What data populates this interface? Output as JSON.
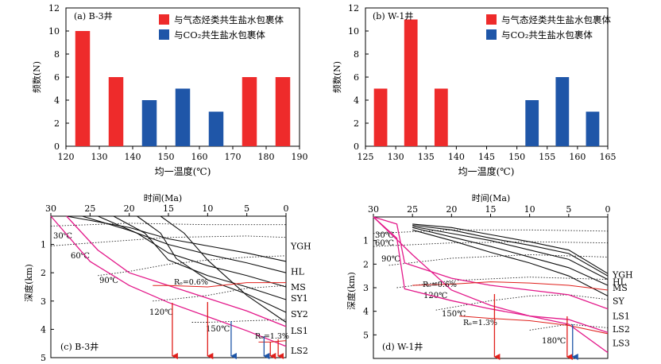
{
  "chart_data": [
    {
      "type": "bar",
      "panel_label": "(a) B-3井",
      "xlabel": "均一温度(℃)",
      "ylabel": "频数(N)",
      "xlim": [
        120,
        190
      ],
      "ylim": [
        0,
        12
      ],
      "x_ticks": [
        "120",
        "130",
        "140",
        "150",
        "160",
        "170",
        "180",
        "190"
      ],
      "y_ticks": [
        "0",
        "2",
        "4",
        "6",
        "8",
        "10",
        "12"
      ],
      "bin_width": 5,
      "series": [
        {
          "name": "与气态烃类共生盐水包裹体",
          "color": "#ee2b2b",
          "bars": [
            {
              "x": 125,
              "value": 10
            },
            {
              "x": 135,
              "value": 6
            },
            {
              "x": 175,
              "value": 6
            },
            {
              "x": 185,
              "value": 6
            }
          ]
        },
        {
          "name": "与CO₂共生盐水包裹体",
          "color": "#1f56a8",
          "bars": [
            {
              "x": 145,
              "value": 4
            },
            {
              "x": 155,
              "value": 5
            },
            {
              "x": 165,
              "value": 3
            }
          ]
        }
      ]
    },
    {
      "type": "bar",
      "panel_label": "(b) W-1井",
      "xlabel": "均一温度(℃)",
      "ylabel": "频数(N)",
      "xlim": [
        125,
        165
      ],
      "ylim": [
        0,
        12
      ],
      "x_ticks": [
        "125",
        "130",
        "135",
        "140",
        "145",
        "150",
        "155",
        "160",
        "165"
      ],
      "y_ticks": [
        "0",
        "2",
        "4",
        "6",
        "8",
        "10",
        "12"
      ],
      "bin_width": 2.5,
      "series": [
        {
          "name": "与气态烃类共生盐水包裹体",
          "color": "#ee2b2b",
          "bars": [
            {
              "x": 127.5,
              "value": 5
            },
            {
              "x": 132.5,
              "value": 11
            },
            {
              "x": 137.5,
              "value": 5
            }
          ]
        },
        {
          "name": "与CO₂共生盐水包裹体",
          "color": "#1f56a8",
          "bars": [
            {
              "x": 152.5,
              "value": 4
            },
            {
              "x": 157.5,
              "value": 6
            },
            {
              "x": 162.5,
              "value": 3
            }
          ]
        }
      ]
    },
    {
      "type": "line",
      "panel_label": "(c) B-3井",
      "xlabel": "时间(Ma)",
      "ylabel": "深度(km)",
      "xlim": [
        30,
        0
      ],
      "ylim": [
        0,
        5
      ],
      "x_ticks": [
        "30",
        "25",
        "20",
        "15",
        "10",
        "5",
        "0"
      ],
      "y_ticks": [
        "1",
        "2",
        "3",
        "4",
        "5"
      ],
      "strata": [
        "YGH",
        "HL",
        "MS",
        "SY1",
        "SY2",
        "LS1",
        "LS2"
      ],
      "strata_depths": [
        1.05,
        1.95,
        2.5,
        2.9,
        3.45,
        4.05,
        4.75
      ],
      "burial_curves": [
        {
          "x": [
            28,
            20,
            15,
            10,
            5,
            0
          ],
          "y": [
            0,
            0.4,
            0.8,
            1.05,
            1.3,
            1.6
          ]
        },
        {
          "x": [
            26,
            20,
            15,
            10,
            5,
            0
          ],
          "y": [
            0,
            0.5,
            1.0,
            1.35,
            1.65,
            2.0
          ]
        },
        {
          "x": [
            24,
            19,
            15,
            10,
            5,
            0
          ],
          "y": [
            0,
            0.6,
            1.3,
            1.75,
            2.1,
            2.5
          ]
        },
        {
          "x": [
            22,
            18,
            15,
            10,
            5,
            0
          ],
          "y": [
            0,
            0.6,
            1.55,
            2.1,
            2.5,
            2.95
          ]
        },
        {
          "x": [
            19,
            16,
            14,
            10,
            5,
            0
          ],
          "y": [
            0,
            0.6,
            1.5,
            2.25,
            2.75,
            3.4
          ]
        },
        {
          "x": [
            16,
            13,
            10,
            5,
            0
          ],
          "y": [
            0,
            0.6,
            1.55,
            2.8,
            3.75
          ]
        }
      ],
      "lower_curves": [
        {
          "x": [
            28,
            24,
            20,
            15,
            10,
            5,
            0
          ],
          "y": [
            0,
            1.2,
            2.0,
            2.45,
            2.9,
            3.35,
            3.9
          ]
        },
        {
          "x": [
            30,
            25,
            20,
            15,
            10,
            5,
            0
          ],
          "y": [
            0,
            1.6,
            2.45,
            3.05,
            3.55,
            4.05,
            4.6
          ]
        }
      ],
      "isotherms": [
        {
          "label": "30℃",
          "x": [
            30,
            20,
            10,
            0
          ],
          "y": [
            0.35,
            0.25,
            0.3,
            0.3
          ]
        },
        {
          "label": "60℃",
          "x": [
            30,
            25,
            15,
            5,
            0
          ],
          "y": [
            1.05,
            0.95,
            0.75,
            0.7,
            0.75
          ]
        },
        {
          "label": "90℃",
          "x": [
            24,
            20,
            15,
            10,
            5,
            0
          ],
          "y": [
            2.1,
            1.95,
            1.7,
            1.55,
            1.45,
            1.4
          ]
        },
        {
          "label": "120℃",
          "x": [
            17,
            15,
            10,
            5,
            0
          ],
          "y": [
            3.0,
            2.95,
            2.8,
            2.55,
            2.45
          ]
        },
        {
          "label": "150℃",
          "x": [
            12,
            10,
            5,
            0
          ],
          "y": [
            3.75,
            3.75,
            3.7,
            3.65
          ]
        }
      ],
      "ro_lines": [
        {
          "label": "Rₒ=0.6%",
          "x": [
            17,
            15,
            10,
            5,
            0
          ],
          "y": [
            2.45,
            2.45,
            2.5,
            2.35,
            2.35
          ]
        },
        {
          "label": "Rₒ=1.3%",
          "x": [
            3.5,
            2,
            0
          ],
          "y": [
            4.45,
            4.45,
            4.4
          ]
        }
      ],
      "arrows": [
        {
          "x": 14.5,
          "color": "red"
        },
        {
          "x": 10,
          "color": "red"
        },
        {
          "x": 7,
          "color": "blue"
        },
        {
          "x": 2.8,
          "color": "blue"
        },
        {
          "x": 2,
          "color": "red"
        },
        {
          "x": 1,
          "color": "red"
        }
      ]
    },
    {
      "type": "line",
      "panel_label": "(d) W-1井",
      "xlabel": "时间(Ma)",
      "ylabel": "深度(km)",
      "xlim": [
        30,
        0
      ],
      "ylim": [
        0,
        6
      ],
      "x_ticks": [
        "30",
        "25",
        "20",
        "15",
        "10",
        "5",
        "0"
      ],
      "y_ticks": [
        "1",
        "2",
        "3",
        "4",
        "5"
      ],
      "strata": [
        "YGH",
        "HL",
        "MS",
        "SY",
        "LS1",
        "LS2",
        "LS3"
      ],
      "strata_depths": [
        2.45,
        2.75,
        3.0,
        3.55,
        4.2,
        4.75,
        5.35
      ],
      "burial_curves": [
        {
          "x": [
            25,
            20,
            15,
            10,
            5,
            0
          ],
          "y": [
            0.3,
            0.45,
            0.75,
            1.05,
            1.4,
            2.4
          ]
        },
        {
          "x": [
            25,
            20,
            15,
            10,
            5,
            0
          ],
          "y": [
            0.35,
            0.55,
            0.9,
            1.2,
            1.55,
            2.5
          ]
        },
        {
          "x": [
            25,
            20,
            15,
            10,
            5,
            0
          ],
          "y": [
            0.4,
            0.7,
            1.0,
            1.4,
            1.8,
            2.65
          ]
        },
        {
          "x": [
            25,
            20,
            15,
            10,
            5,
            0
          ],
          "y": [
            0.45,
            0.85,
            1.25,
            1.7,
            2.15,
            2.9
          ]
        },
        {
          "x": [
            25,
            20,
            15,
            10,
            5,
            0
          ],
          "y": [
            0.55,
            1.0,
            1.5,
            1.95,
            2.5,
            3.35
          ]
        }
      ],
      "lower_curves": [
        {
          "x": [
            30,
            27,
            26,
            20,
            15,
            10,
            5,
            0
          ],
          "y": [
            0,
            0.3,
            1.95,
            2.6,
            2.9,
            3.1,
            3.3,
            3.9
          ]
        },
        {
          "x": [
            30,
            27,
            26,
            20,
            15,
            10,
            5,
            0
          ],
          "y": [
            0,
            0.9,
            3.05,
            3.55,
            3.9,
            4.2,
            4.35,
            4.9
          ]
        },
        {
          "x": [
            30,
            25,
            20,
            15,
            10,
            5,
            0
          ],
          "y": [
            0,
            1.6,
            3.1,
            3.75,
            4.2,
            4.55,
            5.75
          ]
        }
      ],
      "isotherms": [
        {
          "label": "30℃",
          "x": [
            30,
            20,
            10,
            0
          ],
          "y": [
            0.7,
            0.55,
            0.55,
            0.6
          ]
        },
        {
          "label": "60℃",
          "x": [
            30,
            20,
            10,
            0
          ],
          "y": [
            1.25,
            1.1,
            1.05,
            1.1
          ]
        },
        {
          "label": "90℃",
          "x": [
            28,
            20,
            10,
            0
          ],
          "y": [
            2.05,
            1.75,
            1.6,
            1.7
          ]
        },
        {
          "label": "120℃",
          "x": [
            27,
            20,
            10,
            0
          ],
          "y": [
            3.0,
            2.7,
            2.55,
            2.65
          ]
        },
        {
          "label": "150℃",
          "x": [
            22,
            15,
            10,
            5,
            0
          ],
          "y": [
            3.95,
            3.55,
            3.35,
            3.3,
            3.5
          ]
        },
        {
          "label": "180℃",
          "x": [
            10,
            5,
            0
          ],
          "y": [
            4.8,
            4.55,
            4.7
          ]
        }
      ],
      "ro_lines": [
        {
          "label": "Rₒ=0.6%",
          "x": [
            25,
            20,
            15,
            10,
            5,
            0
          ],
          "y": [
            2.9,
            2.85,
            2.75,
            2.8,
            2.9,
            3.1
          ]
        },
        {
          "label": "Rₒ=1.3%",
          "x": [
            19,
            15,
            10,
            5,
            0
          ],
          "y": [
            4.2,
            4.3,
            4.4,
            4.6,
            4.95
          ]
        }
      ],
      "arrows": [
        {
          "x": 14.5,
          "color": "red"
        },
        {
          "x": 5.2,
          "color": "red"
        },
        {
          "x": 4.5,
          "color": "blue"
        }
      ]
    }
  ]
}
